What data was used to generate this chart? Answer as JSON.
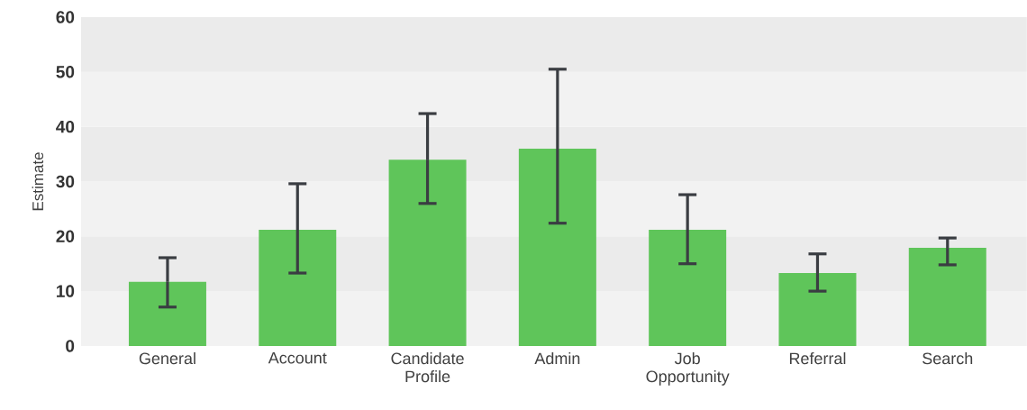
{
  "chart_data": {
    "type": "bar",
    "ylabel": "Estimate",
    "categories": [
      "General",
      "Account",
      "Candidate Profile",
      "Admin",
      "Job Opportunity",
      "Referral",
      "Search"
    ],
    "values": [
      11.7,
      21.2,
      34.0,
      36.0,
      21.2,
      13.3,
      17.9
    ],
    "errors": [
      [
        7.1,
        16.1
      ],
      [
        13.3,
        29.6
      ],
      [
        26.0,
        42.4
      ],
      [
        22.4,
        50.5
      ],
      [
        15.0,
        27.6
      ],
      [
        10.0,
        16.8
      ],
      [
        14.8,
        19.7
      ]
    ],
    "color": "#5fc55a",
    "ylim": [
      0,
      60
    ],
    "yticks": [
      0,
      10,
      20,
      30,
      40,
      50,
      60
    ]
  }
}
